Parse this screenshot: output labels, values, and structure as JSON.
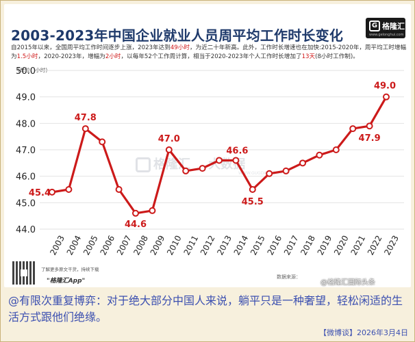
{
  "title": "2003-2023年中国企业就业人员周平均工作时长变化",
  "logo": {
    "mark": "G",
    "name": "格隆汇",
    "url": "www.gelonghui.com"
  },
  "description": {
    "p1": "自2015年以来，全国周平均工作时间逐步上涨，2023年达到",
    "h1": "49小时",
    "p2": "，为近二十年新高。此外，工作时长增速也在加快:2015-2020年，周平均工时增幅为",
    "h2": "1.5小时",
    "p3": "，2020-2023年，增幅为",
    "h3": "2小时",
    "p4": "，以每年52个工作周计算，相当于2020-2023年个人工作时长增加了",
    "h4": "13天",
    "p5": "(8小时工作制)。"
  },
  "unit": "(单位：小时)",
  "chart_data": {
    "type": "line",
    "x": [
      "2003",
      "2004",
      "2005",
      "2006",
      "2007",
      "2008",
      "2009",
      "2010",
      "2011",
      "2012",
      "2013",
      "2014",
      "2015",
      "2016",
      "2017",
      "2018",
      "2019",
      "2020",
      "2021",
      "2022",
      "2023"
    ],
    "series": [
      {
        "values": [
          45.4,
          45.5,
          47.8,
          47.3,
          45.5,
          44.6,
          44.7,
          47.0,
          46.2,
          46.3,
          46.6,
          46.6,
          45.5,
          46.1,
          46.2,
          46.5,
          46.8,
          47.0,
          47.8,
          47.9,
          49.0
        ]
      }
    ],
    "data_labels": [
      {
        "index": 0,
        "text": "45.4"
      },
      {
        "index": 2,
        "text": "47.8"
      },
      {
        "index": 5,
        "text": "44.6"
      },
      {
        "index": 7,
        "text": "47.0"
      },
      {
        "index": 11,
        "text": "46.6"
      },
      {
        "index": 12,
        "text": "45.5"
      },
      {
        "index": 19,
        "text": "47.9"
      },
      {
        "index": 20,
        "text": "49.0"
      }
    ],
    "yticks": [
      "44.0",
      "45.0",
      "46.0",
      "47.0",
      "48.0",
      "49.0",
      "50.0"
    ],
    "ylim": [
      44,
      50
    ],
    "grid": true,
    "line_color": "#cc1a1a"
  },
  "watermark": {
    "name": "格隆汇",
    "extra": "大数据",
    "sub": "WWW.GUGDATA.COM"
  },
  "footer": {
    "promo": "了解更多原文干货，持续下载",
    "app": "\"格隆汇App\"",
    "source": "数据来源：",
    "weibo_mark": "@格隆汇国际头条"
  },
  "caption": "@有限次重复博弈：对于绝大部分中国人来说，躺平只是一种奢望，轻松闲适的生活方式跟他们绝缘。",
  "stamp": "【微博谈】2026年3月4日"
}
